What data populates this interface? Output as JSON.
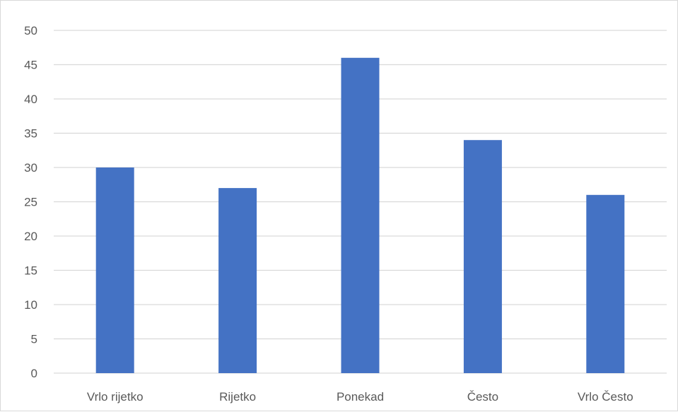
{
  "chart_data": {
    "type": "bar",
    "categories": [
      "Vrlo rijetko",
      "Rijetko",
      "Ponekad",
      "Često",
      "Vrlo Često"
    ],
    "values": [
      30,
      27,
      46,
      34,
      26
    ],
    "ylim": [
      0,
      50
    ],
    "yticks": [
      0,
      5,
      10,
      15,
      20,
      25,
      30,
      35,
      40,
      45,
      50
    ],
    "grid": true,
    "legend": "none",
    "colors": {
      "bar": "#4472C4",
      "grid": "#D9D9D9",
      "text": "#595959"
    }
  }
}
